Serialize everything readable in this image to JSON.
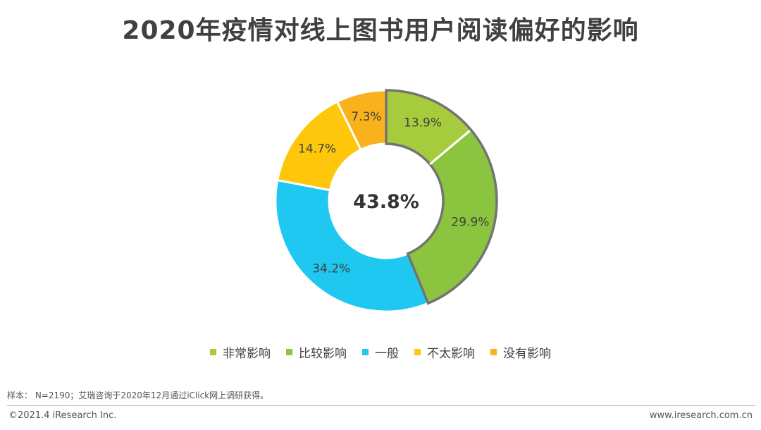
{
  "title": "2020年疫情对线上图书用户阅读偏好的影响",
  "center_label": "43.8%",
  "chart_data": {
    "type": "pie",
    "title": "2020年疫情对线上图书用户阅读偏好的影响",
    "categories": [
      "非常影响",
      "比较影响",
      "一般",
      "不太影响",
      "没有影响"
    ],
    "values": [
      13.9,
      29.9,
      34.2,
      14.7,
      7.3
    ],
    "labels": [
      "13.9%",
      "29.9%",
      "34.2%",
      "14.7%",
      "7.3%"
    ],
    "colors": [
      "#a6cb3c",
      "#8bc43f",
      "#1fc8f1",
      "#fec70b",
      "#f9b21b"
    ],
    "highlighted": [
      "非常影响",
      "比较影响"
    ],
    "highlight_outline": "#737373",
    "center_text": "43.8%",
    "legend_position": "bottom"
  },
  "note": "样本： N=2190；艾瑞咨询于2020年12月通过iClick网上调研获得。",
  "footer": {
    "copyright": "©2021.4 iResearch Inc.",
    "website": "www.iresearch.com.cn"
  }
}
